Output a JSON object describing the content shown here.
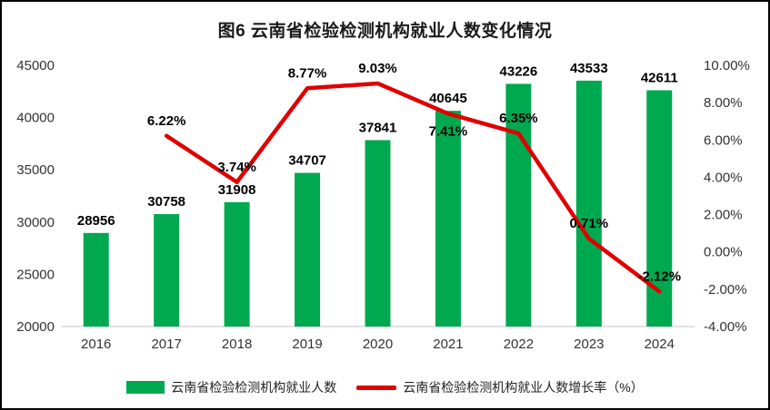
{
  "chart_data": {
    "type": "combo",
    "title": "图6  云南省检验检测机构就业人数变化情况",
    "categories": [
      "2016",
      "2017",
      "2018",
      "2019",
      "2020",
      "2021",
      "2022",
      "2023",
      "2024"
    ],
    "series": [
      {
        "name": "云南省检验检测机构就业人数",
        "type": "bar",
        "axis": "left",
        "color": "#00A84F",
        "values": [
          28956,
          30758,
          31908,
          34707,
          37841,
          40645,
          43226,
          43533,
          42611
        ],
        "labels": [
          "28956",
          "30758",
          "31908",
          "34707",
          "37841",
          "40645",
          "43226",
          "43533",
          "42611"
        ]
      },
      {
        "name": "云南省检验检测机构就业人数增长率（%）",
        "type": "line",
        "axis": "right",
        "color": "#E00000",
        "values": [
          null,
          6.22,
          3.74,
          8.77,
          9.03,
          7.41,
          6.35,
          0.71,
          -2.12
        ],
        "labels": [
          "",
          "6.22%",
          "3.74%",
          "8.77%",
          "9.03%",
          "7.41%",
          "6.35%",
          "0.71%",
          "-2.12%"
        ]
      }
    ],
    "left_axis": {
      "min": 20000,
      "max": 45000,
      "step": 5000,
      "ticks": [
        "20000",
        "25000",
        "30000",
        "35000",
        "40000",
        "45000"
      ]
    },
    "right_axis": {
      "min": -4,
      "max": 10,
      "step": 2,
      "ticks": [
        "-4.00%",
        "-2.00%",
        "0.00%",
        "2.00%",
        "4.00%",
        "6.00%",
        "8.00%",
        "10.00%"
      ]
    },
    "legend_position": "bottom",
    "grid": false,
    "colors": {
      "background": "#FFFFFF",
      "border": "#000000",
      "text": "#333333"
    }
  }
}
